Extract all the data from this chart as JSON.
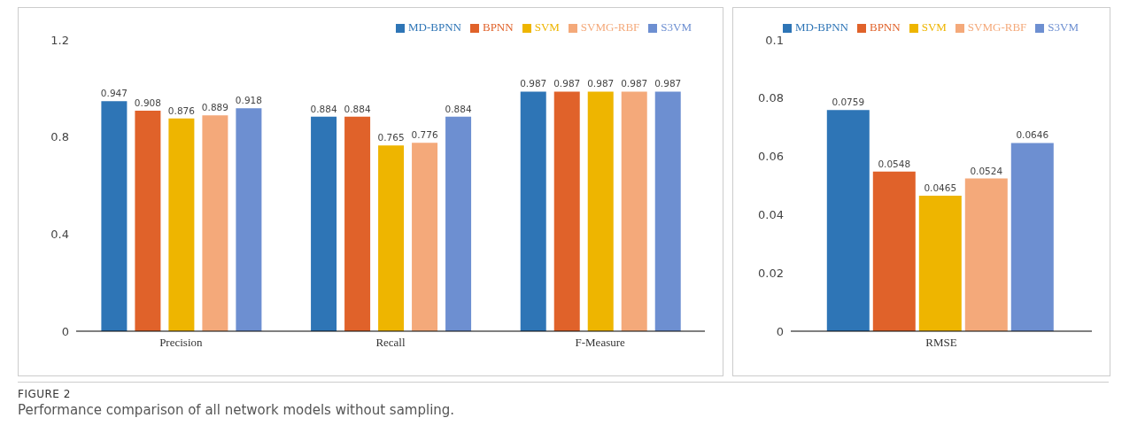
{
  "chart_data": [
    {
      "type": "bar",
      "categories": [
        "Precision",
        "Recall",
        "F-Measure"
      ],
      "series": [
        {
          "name": "MD-BPNN",
          "color": "#2e75b6",
          "values": [
            0.947,
            0.884,
            0.987
          ]
        },
        {
          "name": "BPNN",
          "color": "#e0622a",
          "values": [
            0.908,
            0.884,
            0.987
          ]
        },
        {
          "name": "SVM",
          "color": "#eeb500",
          "values": [
            0.876,
            0.765,
            0.987
          ]
        },
        {
          "name": "SVMG-RBF",
          "color": "#f4a97a",
          "values": [
            0.889,
            0.776,
            0.987
          ]
        },
        {
          "name": "S3VM",
          "color": "#6d8fd1",
          "values": [
            0.918,
            0.884,
            0.987
          ]
        }
      ],
      "ylim": [
        0,
        1.2
      ],
      "yticks": [
        0,
        0.4,
        0.8,
        1.2
      ],
      "data_labels": true,
      "legend": "top right",
      "grid": false,
      "annotations": [
        "FIGURE 2",
        "Performance comparison of all network models without sampling."
      ]
    },
    {
      "type": "bar",
      "categories": [
        "RMSE"
      ],
      "series": [
        {
          "name": "MD-BPNN",
          "color": "#2e75b6",
          "values": [
            0.0759
          ]
        },
        {
          "name": "BPNN",
          "color": "#e0622a",
          "values": [
            0.0548
          ]
        },
        {
          "name": "SVM",
          "color": "#eeb500",
          "values": [
            0.0465
          ]
        },
        {
          "name": "SVMG-RBF",
          "color": "#f4a97a",
          "values": [
            0.0524
          ]
        },
        {
          "name": "S3VM",
          "color": "#6d8fd1",
          "values": [
            0.0646
          ]
        }
      ],
      "ylim": [
        0,
        0.1
      ],
      "yticks": [
        0,
        0.02,
        0.04,
        0.06,
        0.08,
        0.1
      ],
      "data_labels": true,
      "legend": "top right",
      "grid": false
    }
  ]
}
